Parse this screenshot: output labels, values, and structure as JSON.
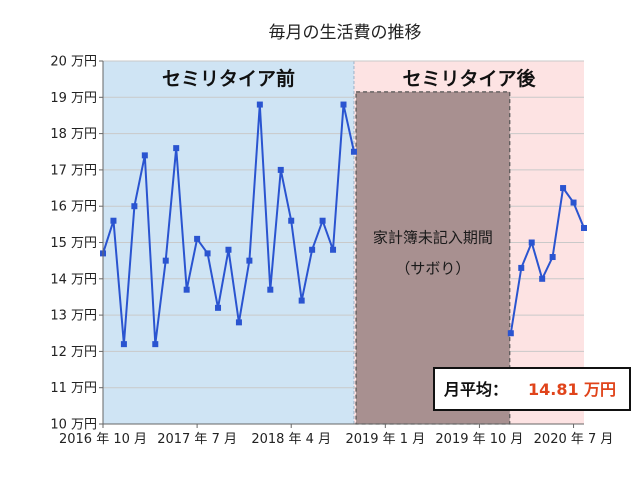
{
  "chart_data": {
    "type": "line",
    "title": "毎月の生活費の推移",
    "y_unit_suffix": "万円",
    "ylim": [
      10,
      20
    ],
    "y_ticks": [
      10,
      11,
      12,
      13,
      14,
      15,
      16,
      17,
      18,
      19,
      20
    ],
    "y_tick_labels": [
      "10 万円",
      "11 万円",
      "12 万円",
      "13 万円",
      "14 万円",
      "15 万円",
      "16 万円",
      "17 万円",
      "18 万円",
      "19 万円",
      "20 万円"
    ],
    "x_range": [
      0,
      46
    ],
    "x_ticks": [
      {
        "index": 0,
        "label": "2016 年 10 月"
      },
      {
        "index": 9,
        "label": "2017 年 7 月"
      },
      {
        "index": 18,
        "label": "2018 年 4 月"
      },
      {
        "index": 27,
        "label": "2019 年 1 月"
      },
      {
        "index": 36,
        "label": "2019 年 10 月"
      },
      {
        "index": 45,
        "label": "2020 年 7 月"
      }
    ],
    "periods": [
      {
        "label": "セミリタイア前",
        "start": 0,
        "end": 24,
        "color": "#cfe4f4"
      },
      {
        "label": "セミリタイア後",
        "start": 24,
        "end": 46,
        "color": "#fde3e3"
      }
    ],
    "gap": {
      "label_line1": "家計簿未記入期間",
      "label_line2": "（サボり）",
      "start": 24.2,
      "end": 38.9,
      "color": "#a89090"
    },
    "series": [
      {
        "name": "生活費",
        "color": "#2a54d0",
        "segments": [
          {
            "x": [
              0,
              1,
              2,
              3,
              4,
              5,
              6,
              7,
              8,
              9,
              10,
              11,
              12,
              13,
              14,
              15,
              16,
              17,
              18,
              19,
              20,
              21,
              22,
              23,
              24
            ],
            "values": [
              14.7,
              15.6,
              12.2,
              16.0,
              17.4,
              12.2,
              14.5,
              17.6,
              13.7,
              15.1,
              14.7,
              13.2,
              14.8,
              12.8,
              14.5,
              18.8,
              13.7,
              17.0,
              15.6,
              13.4,
              14.8,
              15.6,
              14.8,
              18.8,
              17.5
            ]
          },
          {
            "x": [
              39,
              40,
              41,
              42,
              43,
              44,
              45,
              46
            ],
            "values": [
              12.5,
              14.3,
              15.0,
              14.0,
              14.6,
              16.5,
              16.1,
              15.4
            ]
          }
        ]
      }
    ],
    "annotation": {
      "label": "月平均：",
      "value": "14.81",
      "unit": "万円",
      "value_color": "#e0441b"
    }
  }
}
